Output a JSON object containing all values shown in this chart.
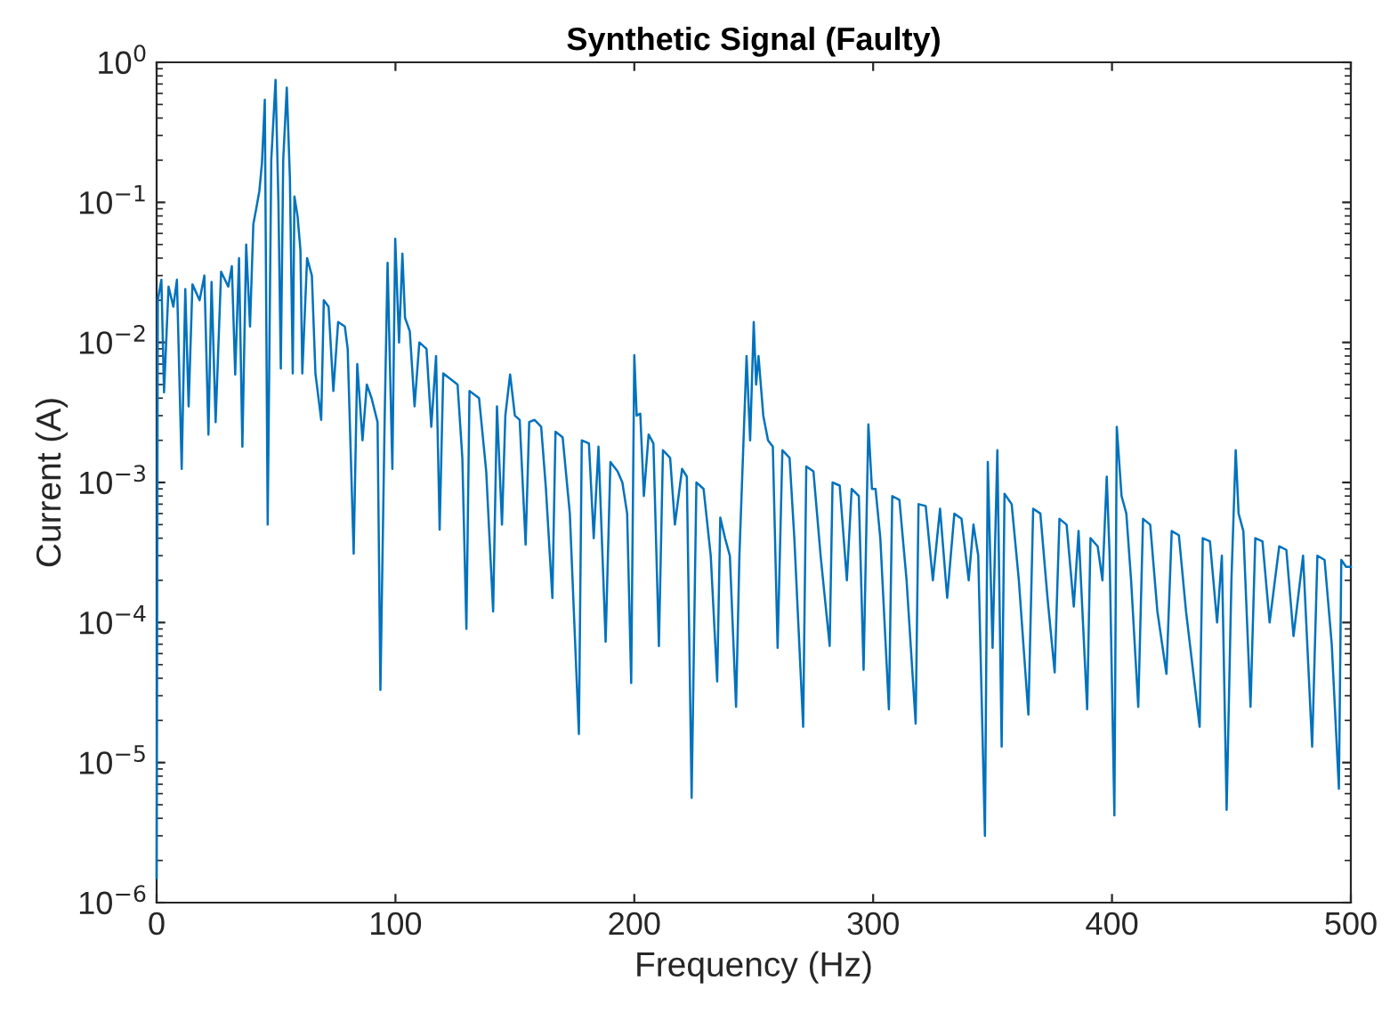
{
  "chart_data": {
    "type": "line",
    "title": "Synthetic Signal (Faulty)",
    "xlabel": "Frequency (Hz)",
    "ylabel": "Current (A)",
    "log": "y",
    "grid": false,
    "marker": "none",
    "line_style": "solid",
    "xlim": [
      0,
      500
    ],
    "xticks": [
      0,
      100,
      200,
      300,
      400,
      500
    ],
    "ylim": [
      1e-06,
      1
    ],
    "yticks": [
      {
        "value": 1e-06,
        "label": "10$^{−6}$"
      },
      {
        "value": 1e-05,
        "label": "10$^{−5}$"
      },
      {
        "value": 0.0001,
        "label": "10$^{−4}$"
      },
      {
        "value": 0.001,
        "label": "10$^{−3}$"
      },
      {
        "value": 0.01,
        "label": "10$^{−2}$"
      },
      {
        "value": 0.1,
        "label": "10$^{−1}$"
      },
      {
        "value": 1,
        "label": "10$^{0}$"
      }
    ],
    "series": [
      {
        "color": "#0072bd",
        "x": [
          0,
          0.5,
          2,
          3.1,
          5,
          7,
          8.5,
          10.5,
          12,
          13.4,
          15,
          18,
          20,
          21.7,
          23,
          24.7,
          27,
          30,
          31.5,
          32.9,
          34.5,
          35.9,
          37.5,
          39.1,
          40.5,
          41.6,
          43,
          44.1,
          45.3,
          46.5,
          48,
          49.8,
          51,
          52,
          53,
          54.5,
          55.8,
          57,
          57.7,
          59,
          60.2,
          61,
          63,
          65,
          66.5,
          68.9,
          70,
          72,
          74,
          76,
          78.8,
          80,
          82.5,
          84,
          86.2,
          88,
          90,
          92.5,
          93.7,
          95.5,
          96.7,
          98.7,
          99.9,
          101.5,
          102.9,
          104,
          106,
          108,
          110,
          113,
          115,
          117,
          118.5,
          120,
          123.5,
          126,
          128,
          129.7,
          131,
          135,
          138,
          140.9,
          142.5,
          144.6,
          146,
          148,
          150,
          152,
          154.5,
          156,
          158.2,
          161,
          163,
          165.7,
          167,
          170,
          173,
          176.8,
          178,
          181,
          183,
          185,
          188,
          190,
          193,
          195,
          197,
          198.7,
          200,
          201,
          202.5,
          204,
          206,
          208,
          210.3,
          212,
          215,
          217,
          220,
          222,
          224,
          226,
          229,
          232,
          234.7,
          236,
          238,
          240,
          242.6,
          244,
          245,
          247,
          248.5,
          250,
          251,
          252,
          254,
          256,
          258,
          260,
          262,
          265,
          267,
          270.7,
          272,
          275,
          278,
          281.8,
          283,
          286,
          289,
          291,
          294,
          296,
          298,
          299.5,
          301,
          303,
          306.6,
          308,
          311,
          314,
          317.8,
          319,
          322,
          325,
          328,
          331,
          334,
          337,
          340,
          342,
          344,
          346.8,
          348,
          350,
          352,
          353.8,
          355,
          358,
          361,
          365,
          367,
          370,
          373,
          376,
          378,
          381,
          384,
          386,
          389.6,
          391,
          394,
          396,
          397.8,
          399,
          401,
          402,
          404,
          406,
          408,
          411,
          413,
          416,
          419,
          422.8,
          425,
          428,
          431,
          436.7,
          438,
          441,
          444,
          446,
          448,
          450,
          451.8,
          453,
          455,
          458,
          460,
          463,
          466,
          470,
          473,
          476,
          480,
          483.8,
          486,
          489,
          492,
          495,
          496,
          498,
          500
        ],
        "values": [
          1.5e-06,
          0.02,
          0.028,
          0.0044,
          0.025,
          0.018,
          0.028,
          0.00125,
          0.024,
          0.0035,
          0.026,
          0.02,
          0.03,
          0.0022,
          0.027,
          0.0027,
          0.032,
          0.025,
          0.035,
          0.0059,
          0.04,
          0.0018,
          0.05,
          0.013,
          0.07,
          0.088,
          0.12,
          0.19,
          0.54,
          0.0005,
          0.2,
          0.75,
          0.1,
          0.0065,
          0.2,
          0.66,
          0.15,
          0.006,
          0.11,
          0.08,
          0.046,
          0.006,
          0.04,
          0.03,
          0.006,
          0.0028,
          0.02,
          0.018,
          0.0045,
          0.014,
          0.013,
          0.009,
          0.00031,
          0.007,
          0.002,
          0.005,
          0.004,
          0.0027,
          3.3e-05,
          0.003,
          0.037,
          0.00125,
          0.055,
          0.01,
          0.043,
          0.015,
          0.012,
          0.0035,
          0.01,
          0.009,
          0.0025,
          0.008,
          0.00046,
          0.006,
          0.0054,
          0.005,
          0.0015,
          9e-05,
          0.0045,
          0.004,
          0.0012,
          0.00012,
          0.0035,
          0.0005,
          0.003,
          0.0059,
          0.003,
          0.0028,
          0.00036,
          0.0027,
          0.0028,
          0.0025,
          0.0009,
          0.00015,
          0.0023,
          0.0021,
          0.0006,
          1.6e-05,
          0.002,
          0.0019,
          0.0004,
          0.0018,
          7.3e-05,
          0.0014,
          0.0012,
          0.001,
          0.0006,
          3.7e-05,
          0.0081,
          0.003,
          0.0031,
          0.0008,
          0.0022,
          0.0019,
          6.8e-05,
          0.0017,
          0.0015,
          0.0005,
          0.00125,
          0.0011,
          5.6e-06,
          0.001,
          0.0009,
          0.0003,
          3.8e-05,
          0.00056,
          0.0004,
          0.0003,
          2.5e-05,
          0.0003,
          0.0009,
          0.008,
          0.002,
          0.014,
          0.005,
          0.008,
          0.003,
          0.002,
          0.0018,
          6.6e-05,
          0.0017,
          0.0015,
          0.0004,
          1.8e-05,
          0.0013,
          0.0012,
          0.0003,
          6.8e-05,
          0.001,
          0.00095,
          0.0002,
          0.0009,
          0.0008,
          4.6e-05,
          0.0026,
          0.0009,
          0.0009,
          0.0004,
          2.4e-05,
          0.0008,
          0.00075,
          0.0002,
          1.9e-05,
          0.0007,
          0.00068,
          0.0002,
          0.00065,
          0.00015,
          0.0006,
          0.00055,
          0.0002,
          0.0005,
          0.0003,
          3e-06,
          0.0014,
          6.6e-05,
          0.0017,
          1.3e-05,
          0.00083,
          0.0007,
          0.0002,
          2.2e-05,
          0.00065,
          0.0006,
          0.00015,
          4.4e-05,
          0.00055,
          0.0005,
          0.00013,
          0.00045,
          2.4e-05,
          0.0004,
          0.00035,
          0.0002,
          0.0011,
          0.0003,
          4.2e-06,
          0.0025,
          0.0008,
          0.0006,
          0.0002,
          2.5e-05,
          0.00055,
          0.0005,
          0.00012,
          4.3e-05,
          0.00045,
          0.00042,
          0.00012,
          1.8e-05,
          0.0004,
          0.00038,
          0.0001,
          0.0003,
          4.6e-06,
          0.0002,
          0.0017,
          0.0006,
          0.00045,
          2.5e-05,
          0.0004,
          0.00038,
          0.0001,
          0.00035,
          0.00033,
          8e-05,
          0.0003,
          1.3e-05,
          0.0003,
          0.00028,
          7e-05,
          6.5e-06,
          0.00028,
          0.00025,
          0.00025
        ]
      }
    ]
  }
}
